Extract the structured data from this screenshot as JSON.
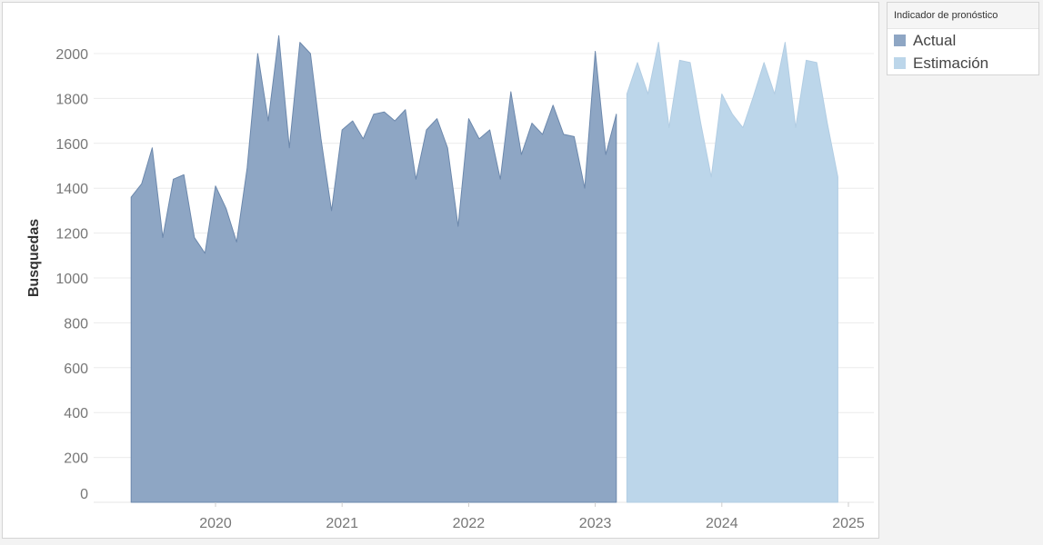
{
  "legend": {
    "title": "Indicador de pronóstico",
    "items": [
      {
        "label": "Actual",
        "color": "#8ea6c4"
      },
      {
        "label": "Estimación",
        "color": "#bcd6ea"
      }
    ]
  },
  "chart_data": {
    "type": "area",
    "title": "",
    "xlabel": "",
    "ylabel": "Busquedas",
    "ylim": [
      0,
      2200
    ],
    "yticks": [
      0,
      200,
      400,
      600,
      800,
      1000,
      1200,
      1400,
      1600,
      1800,
      2000
    ],
    "xticks": [
      "2020",
      "2021",
      "2022",
      "2023",
      "2024",
      "2025"
    ],
    "grid": true,
    "legend_position": "right",
    "series": [
      {
        "name": "Actual",
        "color": "#8ea6c4",
        "start": "2019-05",
        "values": [
          1360,
          1420,
          1580,
          1180,
          1440,
          1460,
          1180,
          1110,
          1410,
          1310,
          1160,
          1490,
          2000,
          1700,
          2080,
          1580,
          2050,
          2000,
          1620,
          1300,
          1660,
          1700,
          1620,
          1730,
          1740,
          1700,
          1750,
          1440,
          1660,
          1710,
          1580,
          1230,
          1710,
          1620,
          1660,
          1440,
          1830,
          1550,
          1690,
          1640,
          1770,
          1640,
          1630,
          1400,
          2010,
          1550,
          1730
        ]
      },
      {
        "name": "Estimación",
        "color": "#bcd6ea",
        "start": "2023-04",
        "values": [
          1820,
          1960,
          1820,
          2050,
          1670,
          1970,
          1960,
          1690,
          1450,
          1820,
          1730,
          1670,
          1810,
          1960,
          1820,
          2050,
          1670,
          1970,
          1960,
          1690,
          1450
        ]
      }
    ]
  }
}
